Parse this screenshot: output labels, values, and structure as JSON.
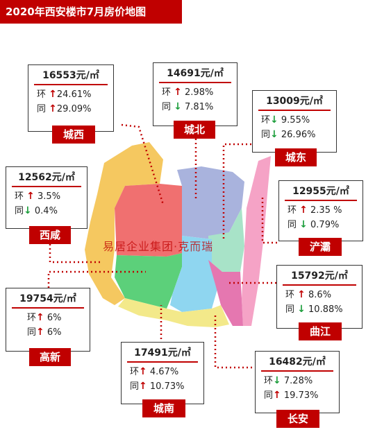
{
  "title": "2020年西安楼市7月房价地图",
  "watermark": "易居企业集团·克而瑞",
  "unit": "元/㎡",
  "districts": [
    {
      "key": "chengxi",
      "name": "城西",
      "price": "16553元/㎡",
      "mom": "24.61%",
      "mom_dir": "up",
      "yoy": "29.09%",
      "yoy_dir": "up"
    },
    {
      "key": "chengbei",
      "name": "城北",
      "price": "14691元/㎡",
      "mom": "2.98%",
      "mom_dir": "up",
      "yoy": "7.81%",
      "yoy_dir": "down"
    },
    {
      "key": "chengdong",
      "name": "城东",
      "price": "13009元/㎡",
      "mom": "9.55%",
      "mom_dir": "down",
      "yoy": "26.96%",
      "yoy_dir": "down"
    },
    {
      "key": "xixian",
      "name": "西咸",
      "price": "12562元/㎡",
      "mom": "3.5%",
      "mom_dir": "up",
      "yoy": "0.4%",
      "yoy_dir": "down"
    },
    {
      "key": "chanba",
      "name": "浐灞",
      "price": "12955元/㎡",
      "mom": "2.35 %",
      "mom_dir": "up",
      "yoy": "0.79%",
      "yoy_dir": "down"
    },
    {
      "key": "qujiang",
      "name": "曲江",
      "price": "15792元/㎡",
      "mom": "8.6%",
      "mom_dir": "up",
      "yoy": "10.88%",
      "yoy_dir": "down"
    },
    {
      "key": "gaoxin",
      "name": "高新",
      "price": "19754元/㎡",
      "mom": "6%",
      "mom_dir": "up",
      "yoy": "6%",
      "yoy_dir": "up"
    },
    {
      "key": "chengnan",
      "name": "城南",
      "price": "17491元/㎡",
      "mom": "4.67%",
      "mom_dir": "up",
      "yoy": "10.73%",
      "yoy_dir": "up"
    },
    {
      "key": "changan",
      "name": "长安",
      "price": "16482元/㎡",
      "mom": "7.28%",
      "mom_dir": "down",
      "yoy": "19.73%",
      "yoy_dir": "up"
    }
  ],
  "labels": {
    "mom": "环",
    "yoy": "同"
  },
  "colors": {
    "accent": "#c00000",
    "up": "#c00000",
    "down": "#1a9d3a",
    "chengxi": "#f07070",
    "chengbei": "#a9b3dd",
    "chengdong": "#a8e3c8",
    "xixian": "#f5c860",
    "chanba": "#f5a3c6",
    "qujiang": "#e577b0",
    "gaoxin": "#5cd07a",
    "chengnan": "#8fd6f0",
    "changan": "#f3e98a"
  }
}
